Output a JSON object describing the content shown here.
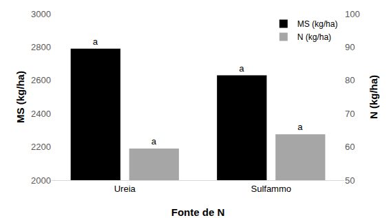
{
  "chart_data": {
    "type": "bar",
    "x_label": "Fonte de N",
    "y_label": "MS (kg/ha)",
    "y2_label": "N (kg/ha)",
    "categories": [
      "Ureia",
      "Sulfammo"
    ],
    "series": [
      {
        "name": "MS (kg/ha)",
        "color": "#000000",
        "values": [
          2790,
          2630
        ],
        "annotations": [
          "a",
          "a"
        ]
      },
      {
        "name": "N (kg/ha)",
        "color": "#a6a6a6",
        "values": [
          59.5,
          63.8
        ],
        "axis": "y2",
        "annotations": [
          "a",
          "a"
        ]
      }
    ],
    "ylim": [
      2000,
      3000
    ],
    "yticks": [
      2000,
      2200,
      2400,
      2600,
      2800,
      3000
    ],
    "y2lim": [
      50,
      100
    ],
    "y2ticks": [
      50,
      60,
      70,
      80,
      90,
      100
    ],
    "legend": "upper right",
    "grid": false
  }
}
